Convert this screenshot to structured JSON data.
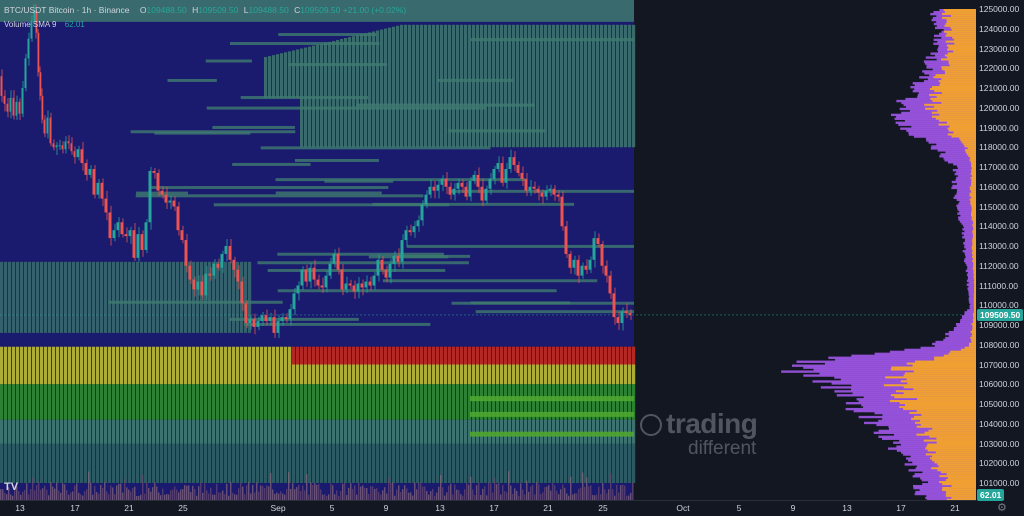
{
  "legend": {
    "symbol": "BTC/USDT Bitcoin · 1h · Binance",
    "o_key": "O",
    "o_val": "109488.50",
    "h_key": "H",
    "h_val": "109509.50",
    "l_key": "L",
    "l_val": "109488.50",
    "c_key": "C",
    "c_val": "109509.50 +21.00 (+0.02%)"
  },
  "volume_legend": {
    "label": "Volume SMA 9",
    "value": "62.01"
  },
  "price_axis": {
    "labels": [
      "125000.00",
      "124000.00",
      "123000.00",
      "122000.00",
      "121000.00",
      "120000.00",
      "119000.00",
      "118000.00",
      "117000.00",
      "116000.00",
      "115000.00",
      "114000.00",
      "113000.00",
      "112000.00",
      "111000.00",
      "110000.00",
      "109000.00",
      "108000.00",
      "107000.00",
      "106000.00",
      "105000.00",
      "104000.00",
      "103000.00",
      "102000.00",
      "101000.00"
    ],
    "current_price": "109509.50",
    "current_color": "#26a69a",
    "volume_value": "62.01",
    "volume_color": "#26a69a"
  },
  "time_axis": {
    "labels": [
      "13",
      "17",
      "21",
      "25",
      "Sep",
      "5",
      "9",
      "13",
      "17",
      "21",
      "25",
      "Oct",
      "5",
      "9",
      "13",
      "17",
      "21"
    ]
  },
  "watermark": {
    "word1": "trading",
    "word2": "different"
  },
  "logo": {
    "text": "TV"
  },
  "colors": {
    "background": "#131722",
    "heatmap_low": "#1a1a6e",
    "heatmap_mid": "#3f7a6f",
    "heatmap_high_green": "#2f8a2f",
    "heatmap_yellow": "#b8b832",
    "heatmap_red": "#c0281e",
    "candle_up": "#26a69a",
    "candle_down": "#ef5350",
    "profile_orange": "#f0a030",
    "profile_purple": "#a056e8"
  },
  "chart_data": {
    "type": "candlestick",
    "symbol": "BTC/USDT",
    "interval": "1h",
    "exchange": "Binance",
    "ylim": [
      100500,
      125600
    ],
    "series": [
      {
        "name": "BTC/USDT",
        "path": [
          [
            0,
            121600
          ],
          [
            3,
            120600
          ],
          [
            6,
            120200
          ],
          [
            9,
            119800
          ],
          [
            12,
            120500
          ],
          [
            15,
            119600
          ],
          [
            18,
            120300
          ],
          [
            21,
            119700
          ],
          [
            24,
            121000
          ],
          [
            27,
            122500
          ],
          [
            30,
            123500
          ],
          [
            33,
            124400
          ],
          [
            35,
            124900
          ],
          [
            37,
            123800
          ],
          [
            39,
            121800
          ],
          [
            41,
            120600
          ],
          [
            43,
            119400
          ],
          [
            46,
            118700
          ],
          [
            49,
            119500
          ],
          [
            52,
            118200
          ],
          [
            55,
            118000
          ],
          [
            58,
            118100
          ],
          [
            61,
            118100
          ],
          [
            64,
            117900
          ],
          [
            67,
            118300
          ],
          [
            70,
            118200
          ],
          [
            73,
            117800
          ],
          [
            76,
            117500
          ],
          [
            80,
            117900
          ],
          [
            84,
            117200
          ],
          [
            88,
            116600
          ],
          [
            92,
            116900
          ],
          [
            96,
            115600
          ],
          [
            100,
            116200
          ],
          [
            104,
            115400
          ],
          [
            108,
            114700
          ],
          [
            112,
            113400
          ],
          [
            116,
            113800
          ],
          [
            120,
            114200
          ],
          [
            124,
            113600
          ],
          [
            128,
            113500
          ],
          [
            132,
            113800
          ],
          [
            136,
            112400
          ],
          [
            140,
            113600
          ],
          [
            144,
            112800
          ],
          [
            148,
            114200
          ],
          [
            152,
            116800
          ],
          [
            156,
            116700
          ],
          [
            160,
            115800
          ],
          [
            164,
            115600
          ],
          [
            168,
            115200
          ],
          [
            172,
            115300
          ],
          [
            176,
            115000
          ],
          [
            180,
            113800
          ],
          [
            184,
            113300
          ],
          [
            188,
            112000
          ],
          [
            192,
            111300
          ],
          [
            196,
            110800
          ],
          [
            200,
            111200
          ],
          [
            204,
            110500
          ],
          [
            208,
            111600
          ],
          [
            212,
            111500
          ],
          [
            216,
            112100
          ],
          [
            220,
            111900
          ],
          [
            224,
            112600
          ],
          [
            228,
            113000
          ],
          [
            232,
            112300
          ],
          [
            236,
            111800
          ],
          [
            240,
            111200
          ],
          [
            244,
            110100
          ],
          [
            248,
            109100
          ],
          [
            252,
            109300
          ],
          [
            256,
            108900
          ],
          [
            260,
            109200
          ],
          [
            264,
            109500
          ],
          [
            268,
            109200
          ],
          [
            272,
            109400
          ],
          [
            276,
            108600
          ],
          [
            280,
            109200
          ],
          [
            284,
            109400
          ],
          [
            288,
            109300
          ],
          [
            292,
            109800
          ],
          [
            296,
            110600
          ],
          [
            300,
            111000
          ],
          [
            304,
            111800
          ],
          [
            308,
            111200
          ],
          [
            312,
            111900
          ],
          [
            316,
            111300
          ],
          [
            320,
            111000
          ],
          [
            324,
            110900
          ],
          [
            328,
            111500
          ],
          [
            332,
            112100
          ],
          [
            336,
            112600
          ],
          [
            340,
            111800
          ],
          [
            344,
            110800
          ],
          [
            348,
            111100
          ],
          [
            352,
            111000
          ],
          [
            356,
            110700
          ],
          [
            360,
            111100
          ],
          [
            364,
            110900
          ],
          [
            368,
            111200
          ],
          [
            372,
            111000
          ],
          [
            376,
            111500
          ],
          [
            380,
            112300
          ],
          [
            384,
            111800
          ],
          [
            388,
            111400
          ],
          [
            392,
            112100
          ],
          [
            396,
            112500
          ],
          [
            400,
            112200
          ],
          [
            404,
            113300
          ],
          [
            408,
            113800
          ],
          [
            412,
            113700
          ],
          [
            416,
            114000
          ],
          [
            420,
            114300
          ],
          [
            424,
            115100
          ],
          [
            428,
            115600
          ],
          [
            432,
            116000
          ],
          [
            436,
            115800
          ],
          [
            440,
            116100
          ],
          [
            444,
            116400
          ],
          [
            448,
            116000
          ],
          [
            452,
            115600
          ],
          [
            456,
            115900
          ],
          [
            460,
            116200
          ],
          [
            464,
            116000
          ],
          [
            468,
            115500
          ],
          [
            472,
            116300
          ],
          [
            476,
            116600
          ],
          [
            480,
            116000
          ],
          [
            484,
            115300
          ],
          [
            488,
            115900
          ],
          [
            492,
            116400
          ],
          [
            496,
            116900
          ],
          [
            500,
            117200
          ],
          [
            504,
            116200
          ],
          [
            508,
            116900
          ],
          [
            512,
            117500
          ],
          [
            516,
            117100
          ],
          [
            520,
            116700
          ],
          [
            524,
            116400
          ],
          [
            528,
            115800
          ],
          [
            532,
            116000
          ],
          [
            536,
            115900
          ],
          [
            540,
            115700
          ],
          [
            544,
            115500
          ],
          [
            548,
            115800
          ],
          [
            552,
            115900
          ],
          [
            556,
            115600
          ],
          [
            560,
            115500
          ],
          [
            564,
            114000
          ],
          [
            568,
            112600
          ],
          [
            572,
            111900
          ],
          [
            576,
            112300
          ],
          [
            580,
            111500
          ],
          [
            584,
            112000
          ],
          [
            588,
            111800
          ],
          [
            592,
            112300
          ],
          [
            596,
            113400
          ],
          [
            600,
            113100
          ],
          [
            604,
            112000
          ],
          [
            608,
            111500
          ],
          [
            612,
            110600
          ],
          [
            616,
            109400
          ],
          [
            620,
            109100
          ],
          [
            624,
            109700
          ],
          [
            628,
            109600
          ],
          [
            632,
            109500
          ]
        ]
      }
    ],
    "heatmap_bands": [
      {
        "price_from": 107000,
        "price_to": 107900,
        "intensity": "red"
      },
      {
        "price_from": 106000,
        "price_to": 107000,
        "intensity": "yellow"
      },
      {
        "price_from": 104200,
        "price_to": 106000,
        "intensity": "green"
      },
      {
        "price_from": 103000,
        "price_to": 104200,
        "intensity": "teal"
      },
      {
        "price_from": 101000,
        "price_to": 103000,
        "intensity": "teal-dark"
      },
      {
        "price_from": 118000,
        "price_to": 124500,
        "intensity": "teal"
      },
      {
        "price_from": 108500,
        "price_to": 112000,
        "intensity": "teal"
      }
    ],
    "volume_profile": [
      {
        "price": 125000,
        "orange": 30,
        "purple": 42
      },
      {
        "price": 124000,
        "orange": 28,
        "purple": 38
      },
      {
        "price": 123000,
        "orange": 26,
        "purple": 40
      },
      {
        "price": 122000,
        "orange": 34,
        "purple": 50
      },
      {
        "price": 121000,
        "orange": 40,
        "purple": 62
      },
      {
        "price": 120000,
        "orange": 44,
        "purple": 78
      },
      {
        "price": 119000,
        "orange": 30,
        "purple": 68
      },
      {
        "price": 118000,
        "orange": 10,
        "purple": 40
      },
      {
        "price": 117000,
        "orange": 4,
        "purple": 20
      },
      {
        "price": 116000,
        "orange": 6,
        "purple": 22
      },
      {
        "price": 115000,
        "orange": 5,
        "purple": 18
      },
      {
        "price": 114000,
        "orange": 3,
        "purple": 14
      },
      {
        "price": 113000,
        "orange": 4,
        "purple": 12
      },
      {
        "price": 112000,
        "orange": 3,
        "purple": 10
      },
      {
        "price": 111000,
        "orange": 2,
        "purple": 8
      },
      {
        "price": 110000,
        "orange": 2,
        "purple": 6
      },
      {
        "price": 109000,
        "orange": 4,
        "purple": 20
      },
      {
        "price": 108000,
        "orange": 6,
        "purple": 44
      },
      {
        "price": 107000,
        "orange": 70,
        "purple": 190
      },
      {
        "price": 106000,
        "orange": 80,
        "purple": 145
      },
      {
        "price": 105000,
        "orange": 70,
        "purple": 120
      },
      {
        "price": 104000,
        "orange": 55,
        "purple": 100
      },
      {
        "price": 103000,
        "orange": 45,
        "purple": 80
      },
      {
        "price": 102000,
        "orange": 40,
        "purple": 65
      },
      {
        "price": 101000,
        "orange": 30,
        "purple": 55
      }
    ]
  }
}
